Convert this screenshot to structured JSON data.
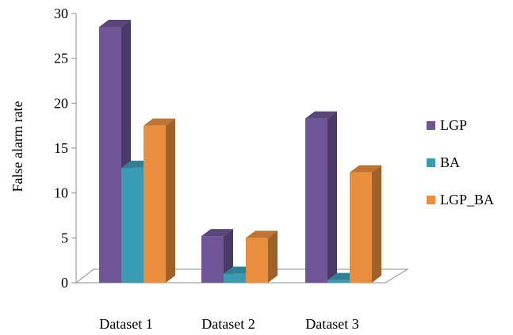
{
  "chart_data": {
    "type": "bar",
    "style": "3d-clustered-column",
    "categories": [
      "Dataset 1",
      "Dataset 2",
      "Dataset 3"
    ],
    "series": [
      {
        "name": "LGP",
        "values": [
          28.5,
          5.2,
          18.3
        ],
        "color": "#6f5596"
      },
      {
        "name": "BA",
        "values": [
          12.8,
          1.0,
          0.3
        ],
        "color": "#3a9bb4"
      },
      {
        "name": "LGP_BA",
        "values": [
          17.5,
          5.0,
          12.3
        ],
        "color": "#e88e3e"
      }
    ],
    "ylabel": "False alarm rate",
    "xlabel": "",
    "ylim": [
      0,
      30
    ],
    "yticks": [
      0,
      5,
      10,
      15,
      20,
      25,
      30
    ],
    "grid": false,
    "legend_position": "right"
  }
}
